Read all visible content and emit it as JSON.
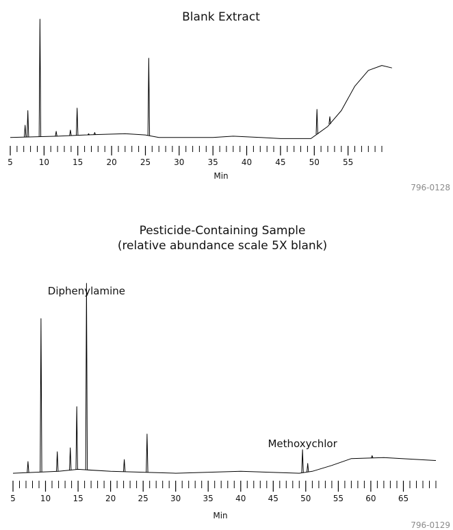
{
  "chart_data": [
    {
      "type": "line",
      "title": "Blank Extract",
      "subtitle": "",
      "xlabel": "Min",
      "ylabel": "",
      "code": "796-0128",
      "xlim": [
        5,
        60
      ],
      "ylim": [
        0,
        1
      ],
      "xticks": [
        5,
        10,
        15,
        20,
        25,
        30,
        35,
        40,
        45,
        50,
        55
      ],
      "grid": false,
      "annotations": [],
      "peaks": [
        {
          "x": 7.2,
          "y": 0.13
        },
        {
          "x": 7.6,
          "y": 0.25
        },
        {
          "x": 9.4,
          "y": 1.0
        },
        {
          "x": 11.8,
          "y": 0.08
        },
        {
          "x": 13.9,
          "y": 0.09
        },
        {
          "x": 14.9,
          "y": 0.27
        },
        {
          "x": 16.6,
          "y": 0.06
        },
        {
          "x": 17.5,
          "y": 0.07
        },
        {
          "x": 25.5,
          "y": 0.68
        },
        {
          "x": 50.4,
          "y": 0.26
        },
        {
          "x": 52.3,
          "y": 0.2
        }
      ],
      "baseline": [
        {
          "x": 5,
          "y": 0.03
        },
        {
          "x": 12,
          "y": 0.04
        },
        {
          "x": 16,
          "y": 0.05
        },
        {
          "x": 22,
          "y": 0.06
        },
        {
          "x": 25,
          "y": 0.05
        },
        {
          "x": 27,
          "y": 0.03
        },
        {
          "x": 35,
          "y": 0.03
        },
        {
          "x": 38,
          "y": 0.04
        },
        {
          "x": 42,
          "y": 0.03
        },
        {
          "x": 45,
          "y": 0.02
        },
        {
          "x": 49.5,
          "y": 0.02
        },
        {
          "x": 50.5,
          "y": 0.06
        },
        {
          "x": 52,
          "y": 0.12
        },
        {
          "x": 54,
          "y": 0.25
        },
        {
          "x": 56,
          "y": 0.45
        },
        {
          "x": 58,
          "y": 0.58
        },
        {
          "x": 60,
          "y": 0.62
        },
        {
          "x": 61.5,
          "y": 0.6
        }
      ]
    },
    {
      "type": "line",
      "title": "Pesticide-Containing Sample",
      "subtitle": "(relative abundance scale 5X blank)",
      "xlabel": "Min",
      "ylabel": "",
      "code": "796-0129",
      "xlim": [
        5,
        70
      ],
      "ylim": [
        0,
        1
      ],
      "xticks": [
        5,
        10,
        15,
        20,
        25,
        30,
        35,
        40,
        45,
        50,
        55,
        60,
        65
      ],
      "grid": false,
      "annotations": [
        {
          "text": "Diphenylamine",
          "x": 16.3
        },
        {
          "text": "Methoxychlor",
          "x": 49.5
        }
      ],
      "peaks": [
        {
          "x": 7.3,
          "y": 0.07
        },
        {
          "x": 9.3,
          "y": 0.8
        },
        {
          "x": 11.8,
          "y": 0.12
        },
        {
          "x": 13.8,
          "y": 0.14
        },
        {
          "x": 14.8,
          "y": 0.35
        },
        {
          "x": 16.3,
          "y": 0.98
        },
        {
          "x": 22.1,
          "y": 0.08
        },
        {
          "x": 25.6,
          "y": 0.21
        },
        {
          "x": 49.5,
          "y": 0.13
        },
        {
          "x": 50.3,
          "y": 0.06
        },
        {
          "x": 60.2,
          "y": 0.1
        }
      ],
      "baseline": [
        {
          "x": 5,
          "y": 0.01
        },
        {
          "x": 12,
          "y": 0.02
        },
        {
          "x": 15,
          "y": 0.03
        },
        {
          "x": 20,
          "y": 0.02
        },
        {
          "x": 30,
          "y": 0.01
        },
        {
          "x": 40,
          "y": 0.02
        },
        {
          "x": 49,
          "y": 0.01
        },
        {
          "x": 51,
          "y": 0.02
        },
        {
          "x": 54,
          "y": 0.05
        },
        {
          "x": 57,
          "y": 0.085
        },
        {
          "x": 62,
          "y": 0.09
        },
        {
          "x": 70,
          "y": 0.075
        }
      ]
    }
  ]
}
